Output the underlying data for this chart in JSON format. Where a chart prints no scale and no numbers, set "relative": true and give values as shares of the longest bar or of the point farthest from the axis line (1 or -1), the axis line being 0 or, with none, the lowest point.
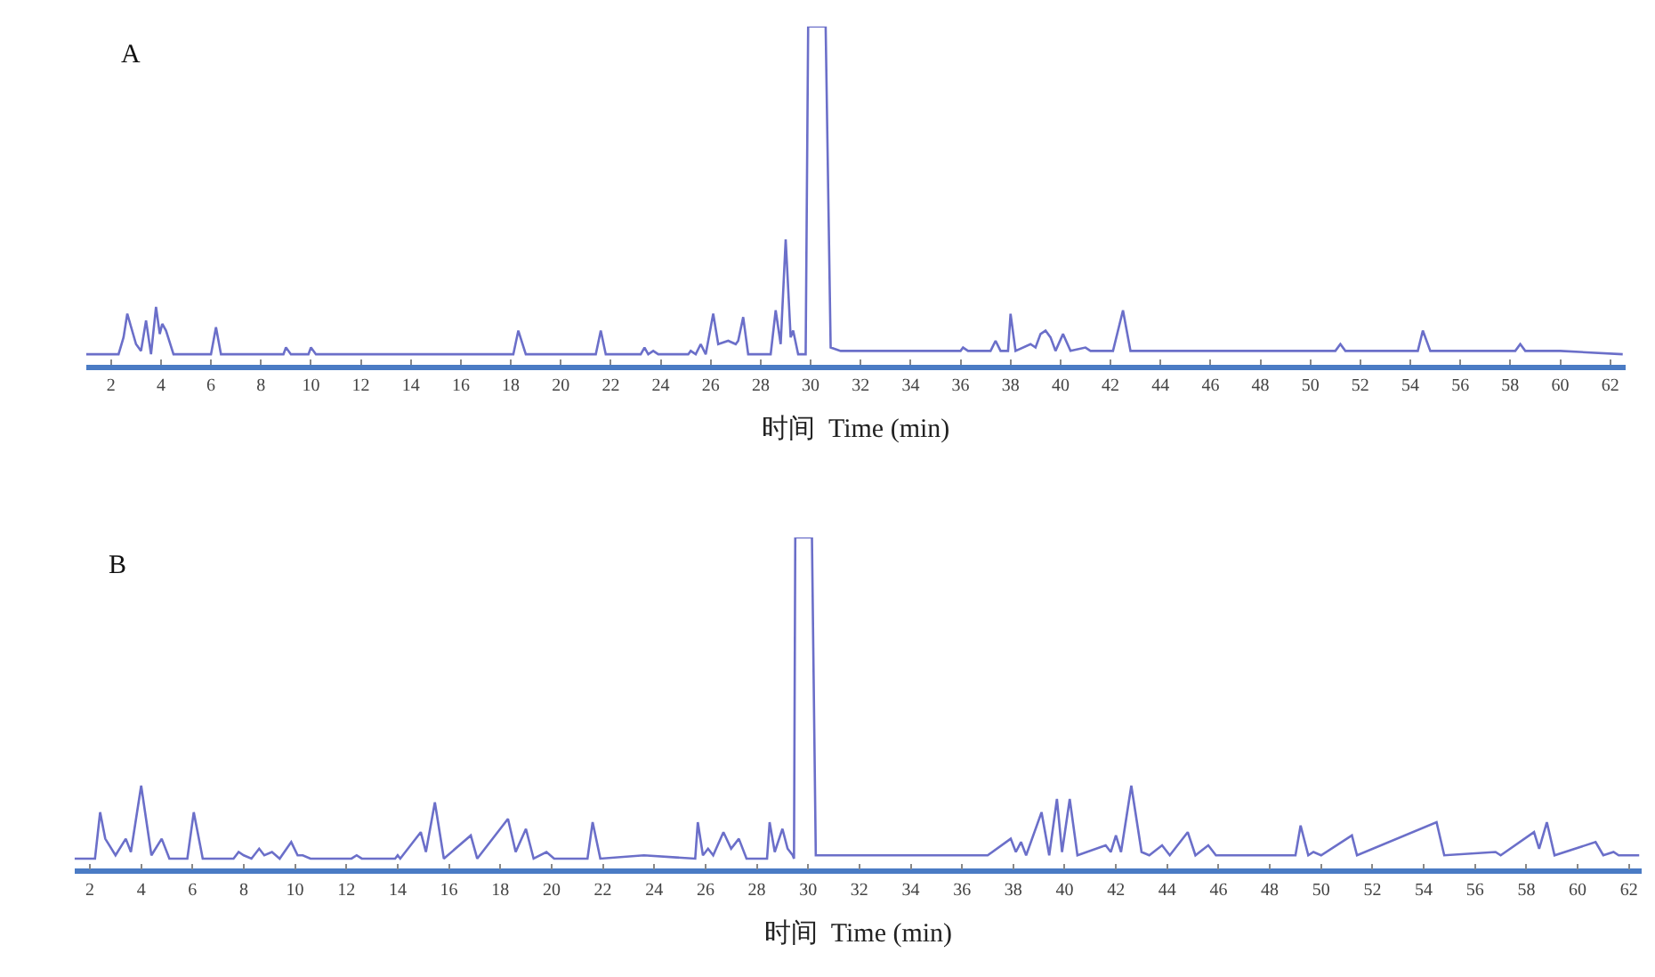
{
  "chart_data": [
    {
      "type": "line",
      "title": "A",
      "xlabel": "时间  Time (min)",
      "relative": true,
      "tick_labels": "x",
      "marker": "none",
      "line_style": "solid",
      "xlim": [
        1.0,
        62.6
      ],
      "xticks": [
        2,
        4,
        6,
        8,
        10,
        12,
        14,
        16,
        18,
        20,
        22,
        24,
        26,
        28,
        30,
        32,
        34,
        36,
        38,
        40,
        42,
        44,
        46,
        48,
        50,
        52,
        54,
        56,
        58,
        60,
        62
      ],
      "x": [
        1.0,
        2.3,
        2.5,
        2.65,
        3.0,
        3.2,
        3.4,
        3.6,
        3.8,
        3.95,
        4.05,
        4.2,
        4.5,
        6.0,
        6.2,
        6.4,
        8.9,
        9.0,
        9.2,
        9.9,
        10.0,
        10.2,
        18.1,
        18.3,
        18.6,
        21.4,
        21.6,
        21.8,
        23.2,
        23.35,
        23.5,
        23.7,
        23.9,
        25.1,
        25.2,
        25.4,
        25.6,
        25.8,
        26.1,
        26.3,
        26.7,
        27.0,
        27.1,
        27.3,
        27.5,
        28.4,
        28.6,
        28.8,
        29.0,
        29.2,
        29.3,
        29.5,
        29.8,
        29.9,
        30.6,
        30.8,
        31.2,
        36.0,
        36.1,
        36.3,
        37.2,
        37.4,
        37.6,
        37.9,
        38.0,
        38.2,
        38.8,
        39.0,
        39.2,
        39.4,
        39.6,
        39.8,
        40.1,
        40.4,
        41.0,
        41.2,
        42.1,
        42.5,
        42.8,
        51.0,
        51.2,
        51.4,
        54.3,
        54.5,
        54.8,
        58.2,
        58.4,
        58.6,
        60.0,
        62.5
      ],
      "series": [
        {
          "color": "#6b6fc9",
          "values": [
            0.03,
            0.03,
            0.08,
            0.15,
            0.06,
            0.04,
            0.13,
            0.03,
            0.17,
            0.09,
            0.12,
            0.1,
            0.03,
            0.03,
            0.11,
            0.03,
            0.03,
            0.05,
            0.03,
            0.03,
            0.05,
            0.03,
            0.03,
            0.1,
            0.03,
            0.03,
            0.1,
            0.03,
            0.03,
            0.05,
            0.03,
            0.04,
            0.03,
            0.03,
            0.04,
            0.03,
            0.06,
            0.03,
            0.15,
            0.06,
            0.07,
            0.06,
            0.07,
            0.14,
            0.03,
            0.03,
            0.16,
            0.06,
            0.37,
            0.08,
            0.1,
            0.03,
            0.03,
            1.0,
            1.0,
            0.05,
            0.04,
            0.04,
            0.05,
            0.04,
            0.04,
            0.07,
            0.04,
            0.04,
            0.15,
            0.04,
            0.06,
            0.05,
            0.09,
            0.1,
            0.08,
            0.04,
            0.09,
            0.04,
            0.05,
            0.04,
            0.04,
            0.16,
            0.04,
            0.04,
            0.06,
            0.04,
            0.04,
            0.1,
            0.04,
            0.04,
            0.06,
            0.04,
            0.04,
            0.03
          ]
        }
      ]
    },
    {
      "type": "line",
      "title": "B",
      "xlabel": "时间  Time (min)",
      "relative": true,
      "tick_labels": "x",
      "marker": "none",
      "line_style": "solid",
      "xlim": [
        1.4,
        62.5
      ],
      "xticks": [
        2,
        4,
        6,
        8,
        10,
        12,
        14,
        16,
        18,
        20,
        22,
        24,
        26,
        28,
        30,
        32,
        34,
        36,
        38,
        40,
        42,
        44,
        46,
        48,
        50,
        52,
        54,
        56,
        58,
        60,
        62
      ],
      "x": [
        1.4,
        2.2,
        2.4,
        2.6,
        3.0,
        3.4,
        3.6,
        3.8,
        4.0,
        4.4,
        4.8,
        5.1,
        5.8,
        6.05,
        6.4,
        7.6,
        7.8,
        8.0,
        8.3,
        8.6,
        8.8,
        9.1,
        9.4,
        9.85,
        10.1,
        10.3,
        10.6,
        12.2,
        12.4,
        12.6,
        13.9,
        14.0,
        14.1,
        14.9,
        15.1,
        15.45,
        15.8,
        16.85,
        17.1,
        18.3,
        18.6,
        19.0,
        19.3,
        19.8,
        20.1,
        21.4,
        21.6,
        21.9,
        23.6,
        25.6,
        25.7,
        25.9,
        26.1,
        26.3,
        26.7,
        27.0,
        27.3,
        27.6,
        28.4,
        28.5,
        28.7,
        29.0,
        29.2,
        29.4,
        29.45,
        29.5,
        30.15,
        30.3,
        31.0,
        37.0,
        37.9,
        38.1,
        38.3,
        38.5,
        39.1,
        39.4,
        39.7,
        39.9,
        40.2,
        40.5,
        41.6,
        41.8,
        42.0,
        42.2,
        42.6,
        43.0,
        43.3,
        43.8,
        44.1,
        44.8,
        45.1,
        45.6,
        45.9,
        49.0,
        49.2,
        49.5,
        49.7,
        50.0,
        51.2,
        51.4,
        54.5,
        54.8,
        56.8,
        57.0,
        58.3,
        58.5,
        58.8,
        59.1,
        60.7,
        61.0,
        61.4,
        61.6,
        62.4
      ],
      "series": [
        {
          "color": "#6b6fc9",
          "values": [
            0.03,
            0.03,
            0.17,
            0.09,
            0.04,
            0.09,
            0.05,
            0.15,
            0.25,
            0.04,
            0.09,
            0.03,
            0.03,
            0.17,
            0.03,
            0.03,
            0.05,
            0.04,
            0.03,
            0.06,
            0.04,
            0.05,
            0.03,
            0.08,
            0.04,
            0.04,
            0.03,
            0.03,
            0.04,
            0.03,
            0.03,
            0.04,
            0.03,
            0.11,
            0.05,
            0.2,
            0.03,
            0.1,
            0.03,
            0.15,
            0.05,
            0.12,
            0.03,
            0.05,
            0.03,
            0.03,
            0.14,
            0.03,
            0.04,
            0.03,
            0.14,
            0.04,
            0.06,
            0.04,
            0.11,
            0.06,
            0.09,
            0.03,
            0.03,
            0.14,
            0.05,
            0.12,
            0.06,
            0.04,
            0.03,
            1.0,
            1.0,
            0.04,
            0.04,
            0.04,
            0.09,
            0.05,
            0.08,
            0.04,
            0.17,
            0.04,
            0.21,
            0.05,
            0.21,
            0.04,
            0.07,
            0.05,
            0.1,
            0.05,
            0.25,
            0.05,
            0.04,
            0.07,
            0.04,
            0.11,
            0.04,
            0.07,
            0.04,
            0.04,
            0.13,
            0.04,
            0.05,
            0.04,
            0.1,
            0.04,
            0.14,
            0.04,
            0.05,
            0.04,
            0.11,
            0.06,
            0.14,
            0.04,
            0.08,
            0.04,
            0.05,
            0.04,
            0.04
          ]
        }
      ]
    }
  ]
}
